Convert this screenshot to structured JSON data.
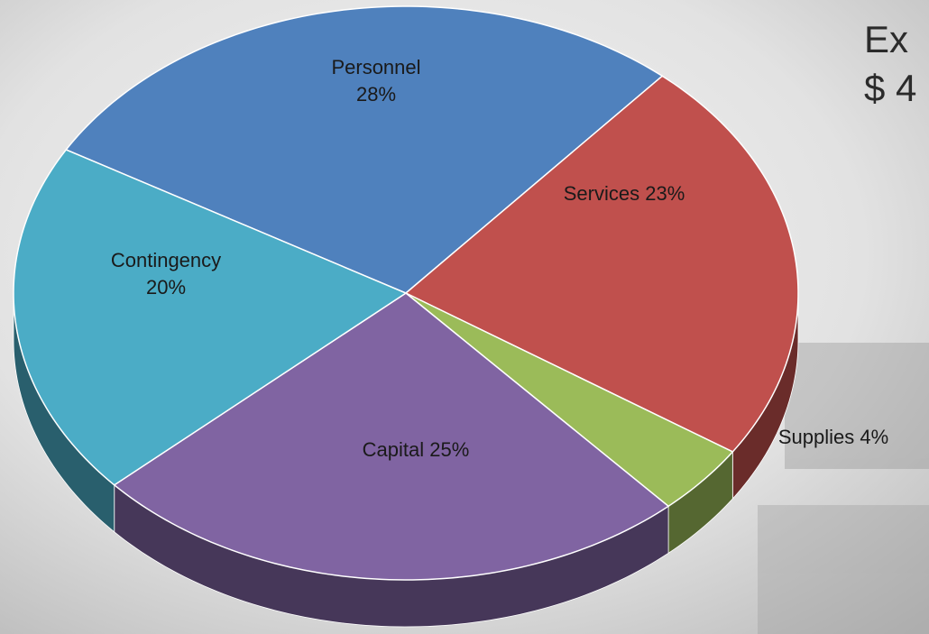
{
  "chart_data": {
    "type": "pie3d",
    "title_lines": [
      "Ex",
      "$ 4"
    ],
    "categories": [
      "Personnel",
      "Services",
      "Supplies",
      "Capital",
      "Contingency"
    ],
    "values": [
      28,
      23,
      4,
      25,
      20
    ],
    "value_labels": [
      "28%",
      "23%",
      "4%",
      "25%",
      "20%"
    ],
    "colors": [
      "#4f81bd",
      "#c0504d",
      "#9bbb59",
      "#8064a2",
      "#4bacc6"
    ]
  }
}
